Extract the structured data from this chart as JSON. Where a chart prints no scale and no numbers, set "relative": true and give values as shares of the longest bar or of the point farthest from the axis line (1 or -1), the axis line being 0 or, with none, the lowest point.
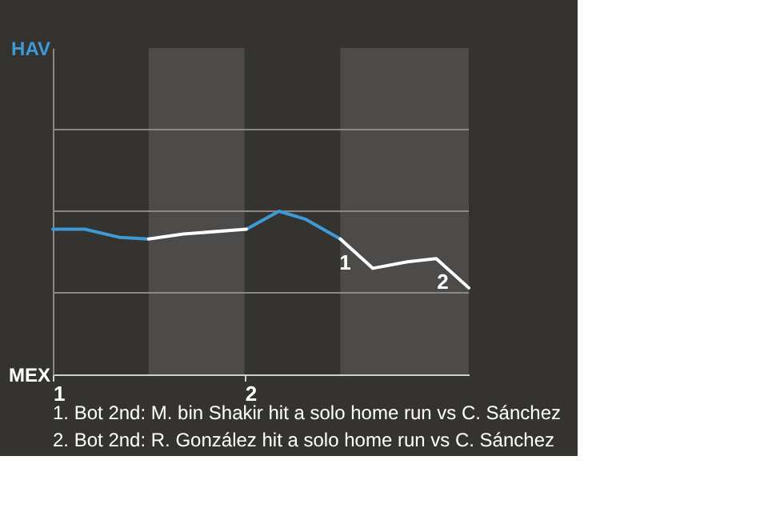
{
  "chart_data": {
    "type": "line",
    "xlim": [
      1,
      3.17
    ],
    "xticks": [
      1,
      2
    ],
    "relative": true,
    "ref_lines": [
      {
        "axis": "y",
        "value": 0.5,
        "label": null,
        "color": "#8a8987"
      },
      {
        "axis": "y",
        "value": 1,
        "label": null,
        "color": "#8a8987"
      },
      {
        "axis": "y",
        "value": 1.5,
        "label": null,
        "color": "#8a8987"
      }
    ],
    "series": [
      {
        "color": "#3e9ad6",
        "x": [
          1,
          1.167,
          1.347,
          1.5,
          1.75,
          2.01,
          2.18,
          2.32,
          2.5
        ],
        "values": [
          0.89,
          0.89,
          0.84,
          0.83,
          null,
          0.89,
          1,
          0.95,
          0.83
        ]
      },
      {
        "color": "#ffffff",
        "x": [
          1.5,
          1.68,
          2.01,
          2.25,
          2.5,
          2.67,
          2.85,
          3.0,
          3.17
        ],
        "values": [
          0.83,
          0.86,
          0.89,
          null,
          0.83,
          0.65,
          0.69,
          0.71,
          0.53
        ]
      }
    ],
    "bands": [
      {
        "axis": "x",
        "from": 1.5,
        "to": 2,
        "label": null,
        "color": "#4c4b49"
      },
      {
        "axis": "x",
        "from": 2.5,
        "to": 3.17,
        "label": null,
        "color": "#4c4b49"
      }
    ],
    "annotations": [
      "HAV",
      "MEX",
      {
        "text": "1",
        "x": 2.63,
        "y": 0.7
      },
      {
        "text": "2",
        "x": 3.14,
        "y": 0.585
      },
      "1. Bot 2nd: M. bin Shakir hit a solo home run vs C. Sánchez",
      "2. Bot 2nd: R. González hit a solo home run vs C. Sánchez"
    ]
  }
}
